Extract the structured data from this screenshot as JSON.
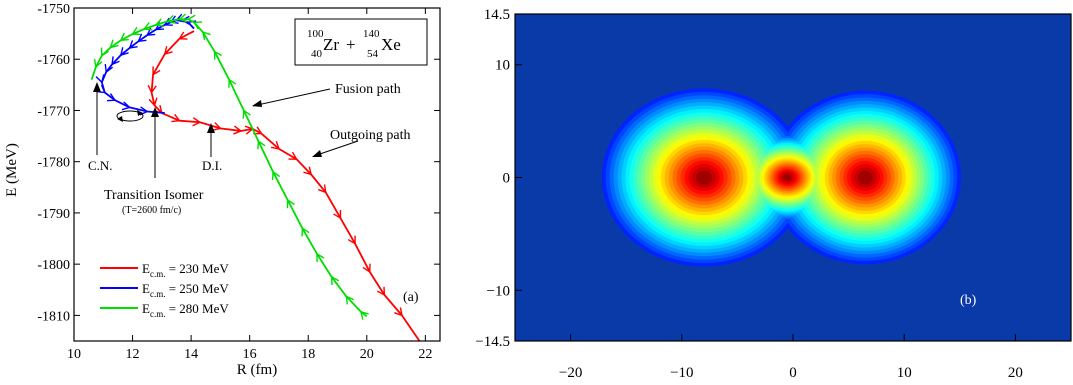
{
  "chart_data": [
    {
      "panel": "(a)",
      "type": "line",
      "xlabel": "R (fm)",
      "ylabel": "E (MeV)",
      "xlim": [
        10,
        22.5
      ],
      "ylim": [
        -1815,
        -1750
      ],
      "xticks": [
        10,
        12,
        14,
        16,
        18,
        20,
        22
      ],
      "yticks": [
        -1750,
        -1760,
        -1770,
        -1780,
        -1790,
        -1800,
        -1810
      ],
      "reaction": {
        "zr_mass": "100",
        "zr_charge": "40",
        "zr_symbol": "Zr",
        "plus": "+",
        "xe_mass": "140",
        "xe_charge": "54",
        "xe_symbol": "Xe"
      },
      "annotations": {
        "fusion_path": "Fusion path",
        "outgoing_path": "Outgoing path",
        "cn": "C.N.",
        "transition_isomer": "Transition Isomer",
        "transition_time": "(T=2600 fm/c)",
        "di": "D.I.",
        "panel_label": "(a)"
      },
      "legend_placement": "bottom-left",
      "series": [
        {
          "name_prefix": "E",
          "name_sub": "c.m.",
          "name_suffix": " = 230 MeV",
          "color": "#ff0000",
          "arrow_direction": "forward",
          "x": [
            14.1,
            13.6,
            13.1,
            12.7,
            12.65,
            12.75,
            13.0,
            13.6,
            14.3,
            15.0,
            15.7,
            16.1,
            16.4,
            17.0,
            17.6,
            18.1,
            18.6,
            19.1,
            19.6,
            20.1,
            20.6,
            21.2,
            21.8
          ],
          "y": [
            -1754.5,
            -1756.0,
            -1759.0,
            -1763.0,
            -1766.5,
            -1769.0,
            -1770.5,
            -1772.0,
            -1772.3,
            -1773.5,
            -1774.0,
            -1773.6,
            -1774.5,
            -1777.5,
            -1779.5,
            -1782.5,
            -1786.0,
            -1791.0,
            -1796.0,
            -1801.5,
            -1806.0,
            -1810.0,
            -1815.0
          ]
        },
        {
          "name_prefix": "E",
          "name_sub": "c.m.",
          "name_suffix": " = 250 MeV",
          "color": "#0000ff",
          "arrow_direction": "backward",
          "x": [
            13.1,
            12.5,
            11.9,
            11.4,
            11.05,
            10.95,
            11.1,
            11.3,
            11.6,
            11.9,
            12.2,
            12.5,
            12.8,
            13.1,
            13.3,
            13.5,
            13.7,
            13.9,
            14.1
          ],
          "y": [
            -1770.5,
            -1770.2,
            -1769.4,
            -1768.0,
            -1766.5,
            -1764.5,
            -1762.5,
            -1761.0,
            -1759.2,
            -1757.8,
            -1756.5,
            -1755.3,
            -1754.2,
            -1753.3,
            -1752.8,
            -1752.4,
            -1752.4,
            -1752.8,
            -1754.0
          ]
        },
        {
          "name_prefix": "E",
          "name_sub": "c.m.",
          "name_suffix": " = 280 MeV",
          "color": "#00dd00",
          "arrow_direction": "backward",
          "x": [
            10.6,
            10.75,
            10.95,
            11.25,
            11.6,
            12.0,
            12.4,
            12.8,
            13.2,
            13.6,
            13.9,
            14.1,
            14.4,
            14.8,
            15.3,
            15.8,
            16.3,
            16.8,
            17.3,
            17.8,
            18.3,
            18.8,
            19.3,
            19.8,
            20.0
          ],
          "y": [
            -1764.0,
            -1761.5,
            -1759.3,
            -1757.7,
            -1756.3,
            -1755.1,
            -1754.1,
            -1753.3,
            -1752.6,
            -1752.2,
            -1752.2,
            -1752.8,
            -1754.7,
            -1758.5,
            -1764.0,
            -1770.0,
            -1776.0,
            -1782.0,
            -1787.5,
            -1793.0,
            -1798.0,
            -1802.5,
            -1806.3,
            -1809.3,
            -1810.2
          ]
        }
      ]
    },
    {
      "panel": "(b)",
      "type": "heatmap",
      "xlim": [
        -25,
        25
      ],
      "ylim": [
        -14.5,
        14.5
      ],
      "xticks": [
        -20,
        -10,
        0,
        10,
        20
      ],
      "yticks": [
        14.5,
        10,
        0,
        -10,
        -14.5
      ],
      "xtick_labels": [
        "−20",
        "−10",
        "0",
        "10",
        "20"
      ],
      "ytick_labels": [
        "14.5",
        "10",
        "0",
        "−10",
        "−14.5"
      ],
      "panel_label": "(b)",
      "colormap": "jet",
      "background_color": "#0a3aa8",
      "blobs": [
        {
          "cx": -8,
          "cy": 0,
          "rx": 9.2,
          "ry": 7.9
        },
        {
          "cx": 6.5,
          "cy": 0,
          "rx": 8.6,
          "ry": 7.7
        },
        {
          "cx": -0.5,
          "cy": 0,
          "rx": 5.0,
          "ry": 4.0
        }
      ]
    }
  ]
}
